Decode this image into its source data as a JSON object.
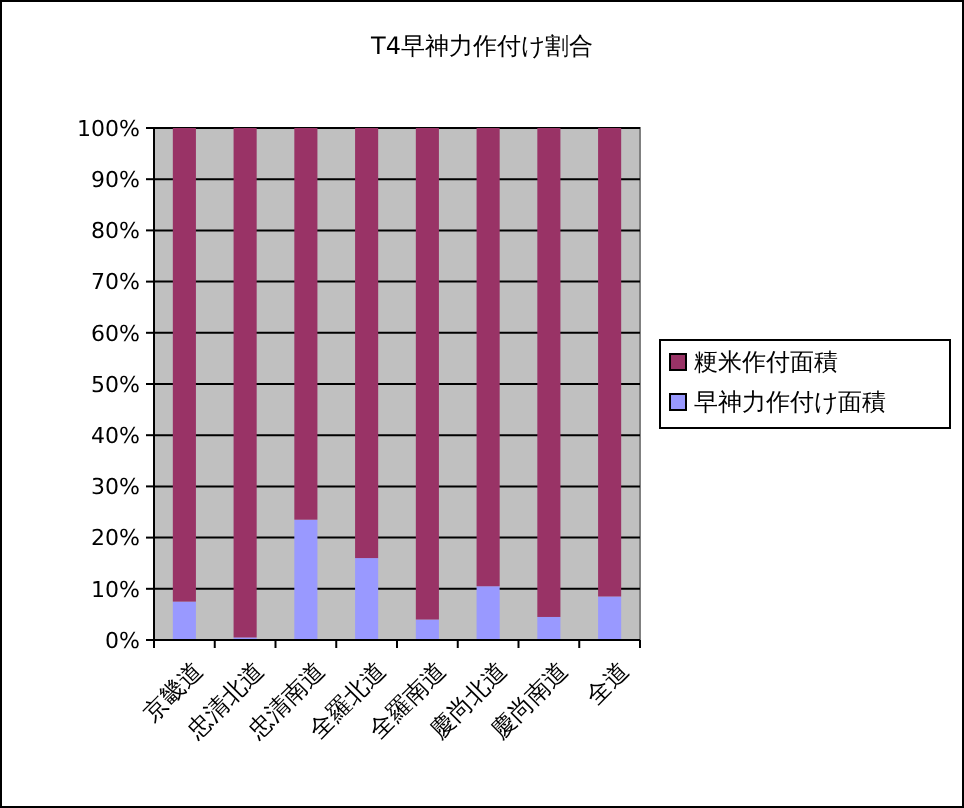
{
  "chart_data": {
    "type": "bar",
    "title": "T4早神力作付け割合",
    "stacked": true,
    "categories": [
      "京畿道",
      "忠清北道",
      "忠清南道",
      "全羅北道",
      "全羅南道",
      "慶尚北道",
      "慶尚南道",
      "全道"
    ],
    "series": [
      {
        "name": "早神力作付け面積",
        "color": "#9999ff",
        "values": [
          7.5,
          0.5,
          23.5,
          16,
          4,
          10.5,
          4.5,
          8.5
        ]
      },
      {
        "name": "粳米作付面積",
        "color": "#993366",
        "values": [
          92.5,
          99.5,
          76.5,
          84,
          96,
          89.5,
          95.5,
          91.5
        ]
      }
    ],
    "ylim": [
      0,
      100
    ],
    "yticks": [
      {
        "value": 0,
        "label": "0%"
      },
      {
        "value": 10,
        "label": "10%"
      },
      {
        "value": 20,
        "label": "20%"
      },
      {
        "value": 30,
        "label": "30%"
      },
      {
        "value": 40,
        "label": "40%"
      },
      {
        "value": 50,
        "label": "50%"
      },
      {
        "value": 60,
        "label": "60%"
      },
      {
        "value": 70,
        "label": "70%"
      },
      {
        "value": 80,
        "label": "80%"
      },
      {
        "value": 90,
        "label": "90%"
      },
      {
        "value": 100,
        "label": "100%"
      }
    ],
    "grid": "y",
    "legend": "right"
  }
}
